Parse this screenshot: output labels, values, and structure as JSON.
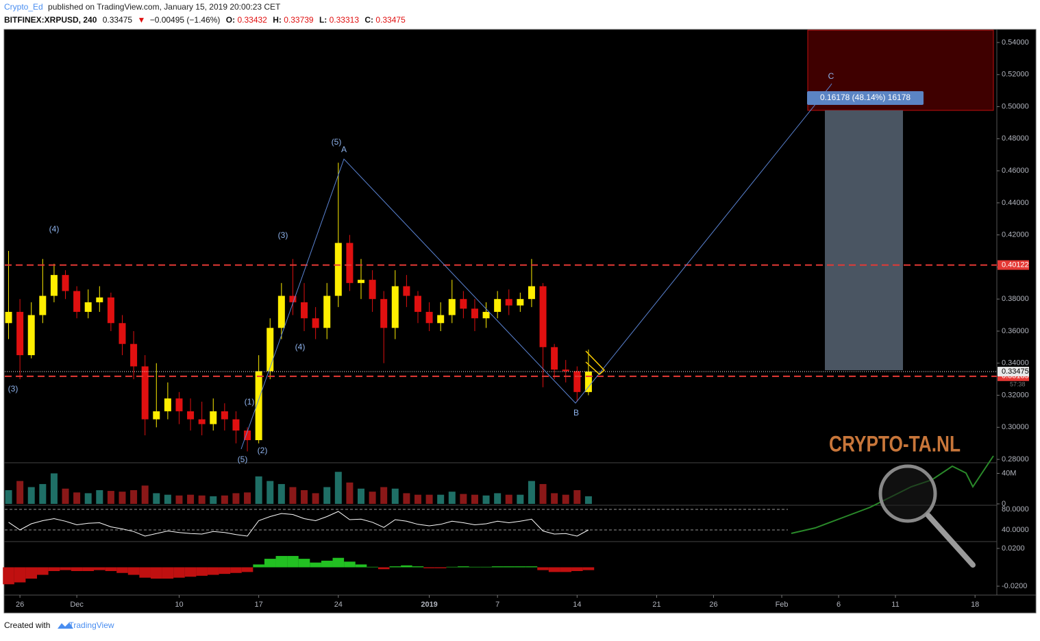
{
  "header": {
    "author": "Crypto_Ed",
    "published": "published on TradingView.com, January 15, 2019 20:00:23 CET",
    "symbol": "BITFINEX:XRPUSD, 240",
    "last": "0.33475",
    "change": "−0.00495 (−1.46%)",
    "o_label": "O:",
    "o_value": "0.33432",
    "h_label": "H:",
    "h_value": "0.33739",
    "l_label": "L:",
    "l_value": "0.33313",
    "c_label": "C:",
    "c_value": "0.33475"
  },
  "footer": {
    "created": "Created with",
    "brand": "TradingView"
  },
  "chart_data": {
    "type": "candlestick",
    "x": [
      "2018-11-25",
      "2018-11-26",
      "2018-11-27",
      "2018-11-28",
      "2018-11-29",
      "2018-11-30",
      "2018-12-01",
      "2018-12-02",
      "2018-12-03",
      "2018-12-04",
      "2018-12-05",
      "2018-12-06",
      "2018-12-07",
      "2018-12-08",
      "2018-12-09",
      "2018-12-10",
      "2018-12-11",
      "2018-12-12",
      "2018-12-13",
      "2018-12-14",
      "2018-12-15",
      "2018-12-16",
      "2018-12-17",
      "2018-12-18",
      "2018-12-19",
      "2018-12-20",
      "2018-12-21",
      "2018-12-22",
      "2018-12-23",
      "2018-12-24",
      "2018-12-25",
      "2018-12-26",
      "2018-12-27",
      "2018-12-28",
      "2018-12-29",
      "2018-12-30",
      "2018-12-31",
      "2019-01-01",
      "2019-01-02",
      "2019-01-03",
      "2019-01-04",
      "2019-01-05",
      "2019-01-06",
      "2019-01-07",
      "2019-01-08",
      "2019-01-09",
      "2019-01-10",
      "2019-01-11",
      "2019-01-12",
      "2019-01-13",
      "2019-01-14",
      "2019-01-15"
    ],
    "open": [
      0.365,
      0.372,
      0.345,
      0.37,
      0.382,
      0.395,
      0.385,
      0.372,
      0.378,
      0.381,
      0.365,
      0.352,
      0.338,
      0.305,
      0.31,
      0.318,
      0.31,
      0.305,
      0.302,
      0.31,
      0.305,
      0.298,
      0.292,
      0.335,
      0.362,
      0.382,
      0.378,
      0.368,
      0.362,
      0.382,
      0.415,
      0.39,
      0.392,
      0.38,
      0.362,
      0.388,
      0.382,
      0.372,
      0.365,
      0.37,
      0.38,
      0.374,
      0.368,
      0.372,
      0.38,
      0.376,
      0.38,
      0.388,
      0.35,
      0.336,
      0.335,
      0.322
    ],
    "high": [
      0.41,
      0.38,
      0.378,
      0.405,
      0.402,
      0.398,
      0.388,
      0.386,
      0.388,
      0.384,
      0.37,
      0.36,
      0.345,
      0.34,
      0.328,
      0.322,
      0.318,
      0.316,
      0.318,
      0.315,
      0.31,
      0.3,
      0.345,
      0.368,
      0.39,
      0.405,
      0.39,
      0.375,
      0.39,
      0.465,
      0.42,
      0.405,
      0.398,
      0.385,
      0.398,
      0.395,
      0.385,
      0.378,
      0.378,
      0.392,
      0.385,
      0.38,
      0.378,
      0.385,
      0.386,
      0.384,
      0.405,
      0.39,
      0.352,
      0.342,
      0.338,
      0.3485
    ],
    "low": [
      0.355,
      0.33,
      0.343,
      0.365,
      0.378,
      0.38,
      0.368,
      0.368,
      0.372,
      0.36,
      0.345,
      0.33,
      0.295,
      0.3,
      0.305,
      0.302,
      0.298,
      0.295,
      0.298,
      0.298,
      0.29,
      0.285,
      0.29,
      0.33,
      0.355,
      0.37,
      0.36,
      0.355,
      0.355,
      0.375,
      0.385,
      0.38,
      0.372,
      0.34,
      0.355,
      0.375,
      0.365,
      0.36,
      0.36,
      0.365,
      0.368,
      0.36,
      0.362,
      0.368,
      0.37,
      0.372,
      0.375,
      0.325,
      0.33,
      0.328,
      0.316,
      0.32
    ],
    "close": [
      0.372,
      0.345,
      0.37,
      0.382,
      0.395,
      0.385,
      0.372,
      0.378,
      0.381,
      0.365,
      0.352,
      0.338,
      0.305,
      0.31,
      0.318,
      0.31,
      0.305,
      0.302,
      0.31,
      0.305,
      0.298,
      0.292,
      0.335,
      0.362,
      0.382,
      0.378,
      0.368,
      0.362,
      0.382,
      0.415,
      0.39,
      0.392,
      0.38,
      0.362,
      0.388,
      0.382,
      0.372,
      0.365,
      0.37,
      0.38,
      0.374,
      0.368,
      0.372,
      0.38,
      0.376,
      0.38,
      0.388,
      0.35,
      0.336,
      0.335,
      0.322,
      0.33475
    ],
    "up_color": "#ffee00",
    "down_color": "#e01010",
    "xlim": [
      "2018-11-24T16:00",
      "2019-02-19T22:00"
    ],
    "xticks": [
      {
        "value": "2018-11-26",
        "label": "26"
      },
      {
        "value": "2018-12-01",
        "label": "Dec"
      },
      {
        "value": "2018-12-10",
        "label": "10"
      },
      {
        "value": "2018-12-17",
        "label": "17"
      },
      {
        "value": "2018-12-24",
        "label": "24"
      },
      {
        "value": "2019-01-01",
        "label": "2019"
      },
      {
        "value": "2019-01-07",
        "label": "7"
      },
      {
        "value": "2019-01-14",
        "label": "14"
      },
      {
        "value": "2019-01-21",
        "label": "21"
      },
      {
        "value": "2019-01-26",
        "label": "26"
      },
      {
        "value": "2019-02-01",
        "label": "Feb"
      },
      {
        "value": "2019-02-06",
        "label": "6"
      },
      {
        "value": "2019-02-11",
        "label": "11"
      },
      {
        "value": "2019-02-18",
        "label": "18"
      }
    ],
    "ylim": [
      0.2779,
      0.5477
    ],
    "yticks": [
      {
        "value": 0.28,
        "label": "0.28000"
      },
      {
        "value": 0.3,
        "label": "0.30000"
      },
      {
        "value": 0.32,
        "label": "0.32000"
      },
      {
        "value": 0.34,
        "label": "0.34000"
      },
      {
        "value": 0.36,
        "label": "0.36000"
      },
      {
        "value": 0.38,
        "label": "0.38000"
      },
      {
        "value": 0.4,
        "label": "0.40000"
      },
      {
        "value": 0.42,
        "label": "0.42000"
      },
      {
        "value": 0.44,
        "label": "0.44000"
      },
      {
        "value": 0.46,
        "label": "0.46000"
      },
      {
        "value": 0.48,
        "label": "0.48000"
      },
      {
        "value": 0.5,
        "label": "0.50000"
      },
      {
        "value": 0.52,
        "label": "0.52000"
      },
      {
        "value": 0.54,
        "label": "0.54000"
      }
    ],
    "levels": [
      {
        "value": 0.40122,
        "color": "#e53935",
        "style": "dashed"
      },
      {
        "value": 0.33185,
        "color": "#e53935",
        "style": "dashed"
      },
      {
        "value": 0.33475,
        "color": "#ffffff",
        "style": "dotted"
      }
    ],
    "countdown": "57:38",
    "annotations": [
      "(4)",
      "(3)",
      "(3)",
      "(4)",
      "(5)",
      "A",
      "(1)",
      "(2)",
      "(5)",
      "B",
      "C"
    ],
    "target_label": "0.16178 (48.14%) 16178",
    "watermark": "CRYPTO-TA.NL",
    "volume": {
      "values": [
        18000000,
        30000000,
        22000000,
        26000000,
        40000000,
        20000000,
        15000000,
        14000000,
        18000000,
        17000000,
        16000000,
        18000000,
        24000000,
        14000000,
        12000000,
        11000000,
        12000000,
        11000000,
        10000000,
        11000000,
        14000000,
        15000000,
        36000000,
        30000000,
        26000000,
        22000000,
        18000000,
        14000000,
        22000000,
        42000000,
        28000000,
        20000000,
        16000000,
        22000000,
        20000000,
        14000000,
        12000000,
        12000000,
        12000000,
        16000000,
        13000000,
        12000000,
        11000000,
        14000000,
        12000000,
        12000000,
        30000000,
        26000000,
        14000000,
        12000000,
        18000000,
        10000000
      ],
      "ylim": [
        0,
        53000000
      ],
      "yticks": [
        0,
        {
          "value": 40000000,
          "label": "40M"
        }
      ],
      "up_color": "#1f6f66",
      "down_color": "#8a1818"
    },
    "rsi": {
      "values": [
        55,
        40,
        52,
        58,
        62,
        57,
        50,
        53,
        54,
        46,
        42,
        37,
        28,
        33,
        38,
        35,
        33,
        32,
        37,
        35,
        31,
        28,
        58,
        66,
        72,
        70,
        62,
        58,
        66,
        76,
        60,
        61,
        55,
        45,
        60,
        57,
        51,
        48,
        51,
        57,
        54,
        50,
        52,
        57,
        54,
        57,
        61,
        38,
        32,
        33,
        28,
        40
      ],
      "ylim": [
        18.7,
        86.7
      ],
      "yticks": [
        {
          "value": 40,
          "label": "40.0000"
        },
        {
          "value": 80,
          "label": "80.0000"
        }
      ],
      "color": "#ffffff"
    },
    "macd_histogram": {
      "values": [
        -0.018,
        -0.016,
        -0.012,
        -0.008,
        -0.004,
        -0.003,
        -0.004,
        -0.004,
        -0.003,
        -0.004,
        -0.006,
        -0.008,
        -0.011,
        -0.012,
        -0.012,
        -0.011,
        -0.01,
        -0.009,
        -0.008,
        -0.007,
        -0.006,
        -0.005,
        0.003,
        0.009,
        0.012,
        0.012,
        0.009,
        0.005,
        0.007,
        0.01,
        0.006,
        0.003,
        0.0005,
        -0.002,
        0.001,
        0.002,
        0.001,
        -0.001,
        -0.001,
        0.0005,
        0.001,
        0.0005,
        0.0005,
        0.001,
        0.001,
        0.001,
        0.001,
        -0.003,
        -0.005,
        -0.005,
        -0.004,
        -0.003
      ],
      "ylim": [
        -0.0287,
        0.0265
      ],
      "yticks": [
        {
          "value": -0.02,
          "label": "-0.0200"
        },
        {
          "value": 0.02,
          "label": "0.0200"
        }
      ],
      "up_color": "#22c022",
      "down_color": "#c01010"
    }
  }
}
